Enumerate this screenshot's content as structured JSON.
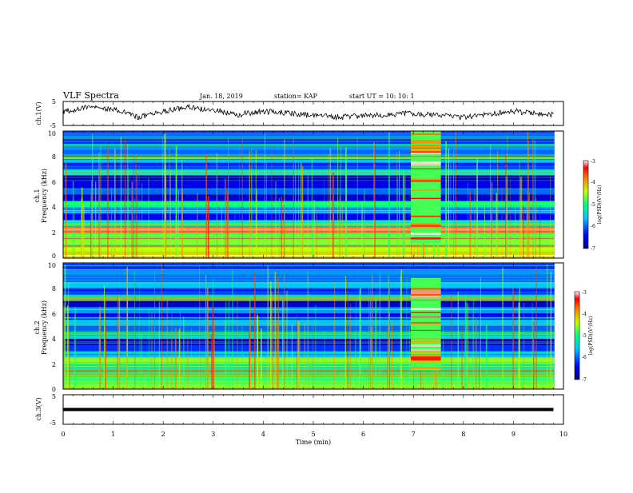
{
  "header": {
    "title": "VLF Spectra",
    "date": "Jan. 18, 2019",
    "station": "station= KAP",
    "start": "start  UT =   10: 10: 1"
  },
  "colors": {
    "background": "#ffffff",
    "axis": "#000000",
    "trace": "#000000",
    "spectrogram_low": "#000078",
    "spectrogram_high": "#ff0000"
  },
  "chart_data": [
    {
      "id": "ch1-waveform",
      "type": "line",
      "ylabel": "ch.1(V)",
      "ylim": [
        -5,
        5
      ],
      "ytick_labels": [
        "5",
        "-5"
      ],
      "xlim": [
        0,
        10
      ],
      "x": [
        0,
        0.5,
        1,
        1.5,
        2,
        2.5,
        3,
        3.5,
        4,
        4.5,
        5,
        5.5,
        6,
        6.5,
        7,
        7.5,
        8,
        8.5,
        9,
        9.5,
        9.8
      ],
      "y": [
        1.0,
        2.5,
        2.0,
        -1.5,
        1.0,
        2.5,
        1.5,
        -0.5,
        1.0,
        0.0,
        -1.0,
        -1.5,
        -1.0,
        -0.5,
        0.0,
        -1.0,
        -1.5,
        -0.5,
        1.0,
        0.0,
        -0.5
      ]
    },
    {
      "id": "ch1-spectrogram",
      "type": "heatmap",
      "ylabel_line1": "ch.1",
      "ylabel_line2": "Frequency (kHz)",
      "ylim": [
        0,
        10
      ],
      "ytick_labels": [
        "0",
        "2",
        "4",
        "6",
        "8",
        "10"
      ],
      "xlim": [
        0,
        10
      ],
      "colorbar": {
        "label": "log(PSD)(V²/Hz)",
        "range": [
          -7,
          -3
        ],
        "tick_labels": [
          "-3",
          "-4",
          "-5",
          "-6",
          "-7"
        ]
      },
      "freq_bands_khz": [
        0,
        0.5,
        1,
        1.5,
        2,
        2.5,
        3,
        3.5,
        4,
        4.5,
        5,
        5.5,
        6,
        6.5,
        7,
        7.5,
        8,
        8.5,
        9,
        9.5
      ],
      "band_log_psd": [
        -4.2,
        -4.4,
        -4.6,
        -4.8,
        -3.8,
        -5.2,
        -6.4,
        -5.8,
        -5.0,
        -6.6,
        -6.0,
        -6.5,
        -6.8,
        -5.4,
        -6.2,
        -5.6,
        -6.0,
        -5.8,
        -6.2,
        -6.0
      ],
      "broadband_burst_min": [
        6.95,
        7.55
      ]
    },
    {
      "id": "ch2-spectrogram",
      "type": "heatmap",
      "ylabel_line1": "ch.2",
      "ylabel_line2": "Frequency (kHz)",
      "ylim": [
        0,
        10
      ],
      "ytick_labels": [
        "0",
        "2",
        "4",
        "6",
        "8",
        "10"
      ],
      "xlim": [
        0,
        10
      ],
      "colorbar": {
        "label": "log(PSD)(V²/Hz)",
        "range": [
          -7,
          -3
        ],
        "tick_labels": [
          "-3",
          "-4",
          "-5",
          "-6",
          "-7"
        ]
      },
      "freq_bands_khz": [
        0,
        0.5,
        1,
        1.5,
        2,
        2.5,
        3,
        3.5,
        4,
        4.5,
        5,
        5.5,
        6,
        6.5,
        7,
        7.5,
        8,
        8.5,
        9,
        9.5
      ],
      "band_log_psd": [
        -4.6,
        -4.8,
        -5.0,
        -5.2,
        -4.6,
        -5.6,
        -6.2,
        -6.8,
        -5.4,
        -6.0,
        -5.6,
        -6.4,
        -5.8,
        -6.6,
        -5.2,
        -6.2,
        -5.6,
        -6.0,
        -5.8,
        -6.2
      ],
      "broadband_burst_min": [
        6.95,
        7.55
      ]
    },
    {
      "id": "ch3-waveform",
      "type": "line",
      "ylabel": "ch.3(V)",
      "ylim": [
        -5,
        5
      ],
      "ytick_labels": [
        "5",
        "-5"
      ],
      "xlim": [
        0,
        10
      ],
      "x": [
        0,
        9.8
      ],
      "y": [
        0,
        0
      ],
      "xlabel": "Time (min)",
      "xtick_labels": [
        "0",
        "1",
        "2",
        "3",
        "4",
        "5",
        "6",
        "7",
        "8",
        "9",
        "10"
      ]
    }
  ]
}
